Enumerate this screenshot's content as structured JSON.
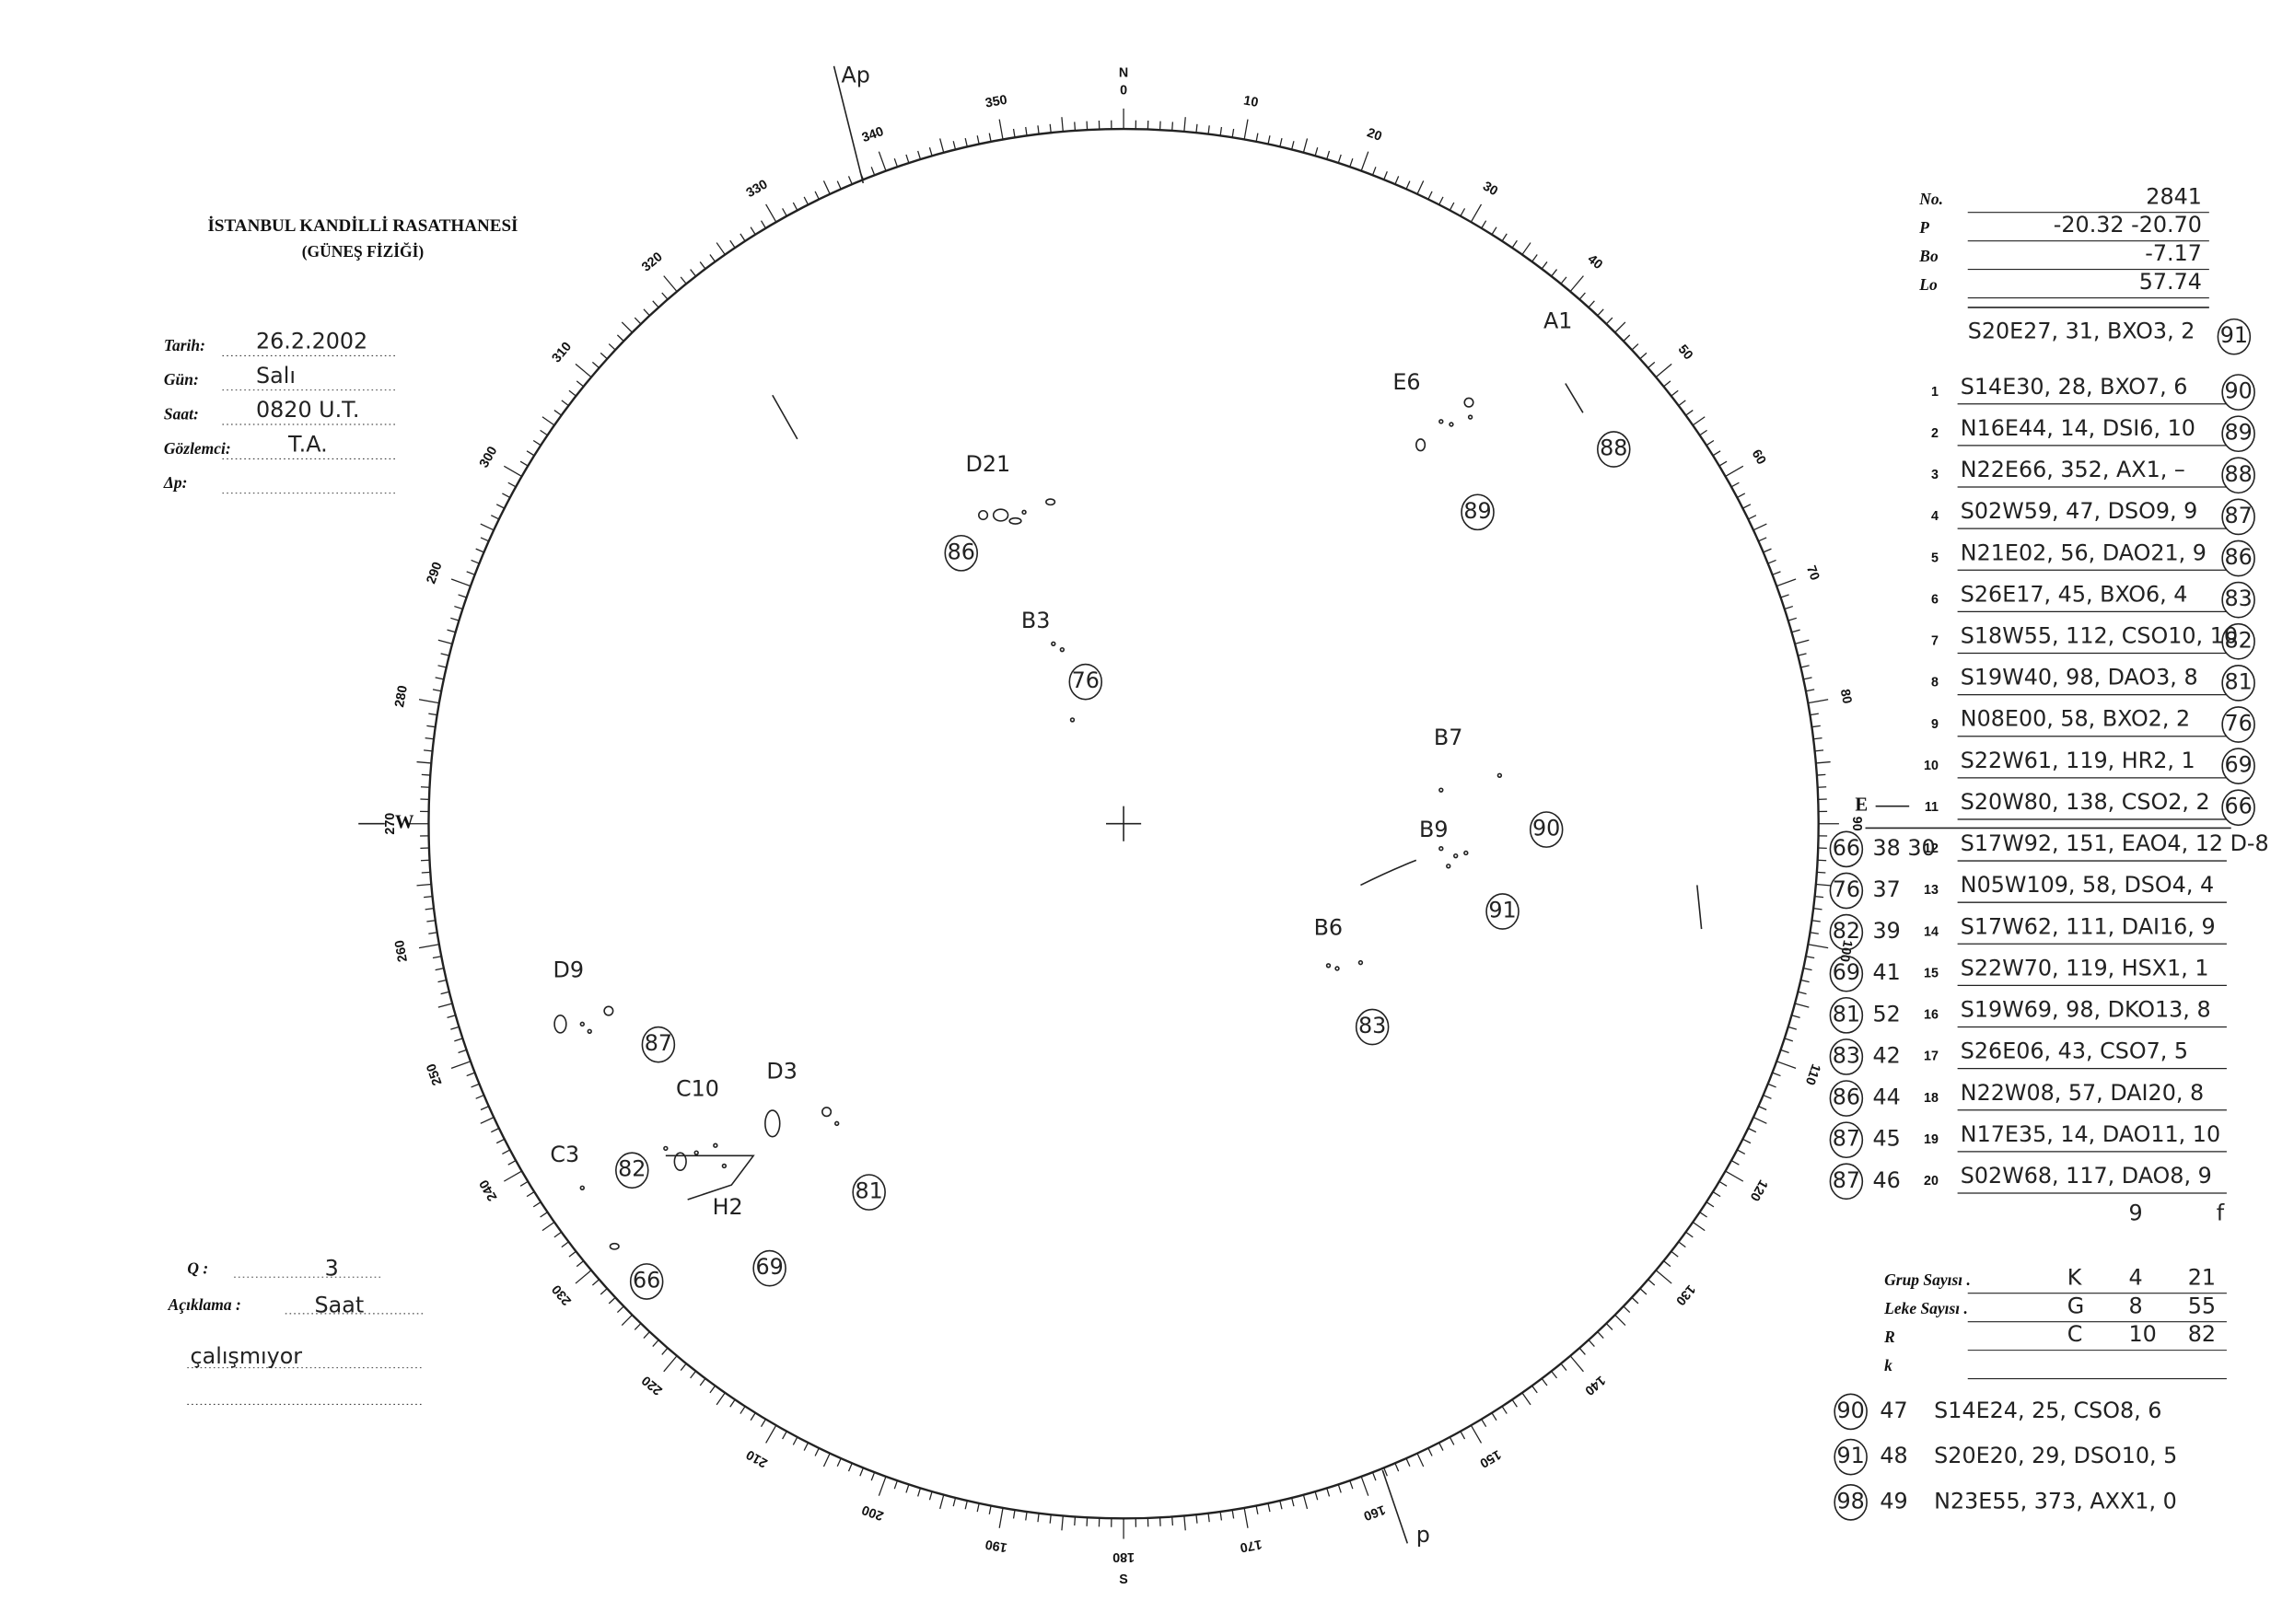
{
  "header": {
    "institution": "İSTANBUL KANDİLLİ RASATHANESİ",
    "department": "(GÜNEŞ FİZİĞİ)"
  },
  "form": [
    {
      "label": "Tarih:",
      "value": "26.2.2002"
    },
    {
      "label": "Gün:",
      "value": "Salı"
    },
    {
      "label": "Saat:",
      "value": "0820 U.T."
    },
    {
      "label": "Gözlemci:",
      "value": "T.A."
    },
    {
      "label": "Δp:",
      "value": ""
    }
  ],
  "remarks": {
    "q_label": "Q :",
    "q_value": "3",
    "note_label": "Açıklama :",
    "note_1": "Saat",
    "note_2": "çalışmıyor"
  },
  "dial": {
    "labels": [
      0,
      10,
      20,
      30,
      40,
      50,
      60,
      70,
      80,
      90,
      100,
      110,
      120,
      130,
      140,
      150,
      160,
      170,
      180,
      190,
      200,
      210,
      220,
      230,
      240,
      250,
      260,
      270,
      280,
      290,
      300,
      310,
      320,
      330,
      340,
      350
    ],
    "north": "N",
    "south": "S",
    "west": "W",
    "east": "E",
    "axis_top": "Ap",
    "axis_bottom": "p"
  },
  "params": [
    {
      "label": "No.",
      "value": "2841"
    },
    {
      "label": "P",
      "value": "-20.32  -20.70"
    },
    {
      "label": "Bo",
      "value": "-7.17"
    },
    {
      "label": "Lo",
      "value": "57.74"
    }
  ],
  "group_header": {
    "text": "S20E27, 31, BXO3, 2",
    "circle": "91"
  },
  "groups": [
    {
      "no": "1",
      "text": "S14E30, 28, BXO7, 6",
      "circle": "90"
    },
    {
      "no": "2",
      "text": "N16E44, 14, DSI6, 10",
      "circle": "89"
    },
    {
      "no": "3",
      "text": "N22E66, 352, AX1, –",
      "circle": "88"
    },
    {
      "no": "4",
      "text": "S02W59, 47, DSO9, 9",
      "circle": "87"
    },
    {
      "no": "5",
      "text": "N21E02, 56, DAO21, 9",
      "circle": "86"
    },
    {
      "no": "6",
      "text": "S26E17, 45, BXO6, 4",
      "circle": "83"
    },
    {
      "no": "7",
      "text": "S18W55, 112, CSO10, 10",
      "circle": "82"
    },
    {
      "no": "8",
      "text": "S19W40, 98, DAO3, 8",
      "circle": "81"
    },
    {
      "no": "9",
      "text": "N08E00, 58, BXO2, 2",
      "circle": "76"
    },
    {
      "no": "10",
      "text": "S22W61, 119, HR2, 1",
      "circle": "69"
    },
    {
      "no": "11",
      "text": "S20W80, 138, CSO2, 2",
      "circle": "66"
    },
    {
      "no": "12",
      "text": "S17W92, 151, EAO4, 12 D-8",
      "circle": "66",
      "prefix": "38 30"
    },
    {
      "no": "13",
      "text": "N05W109, 58, DSO4, 4",
      "circle": "76",
      "prefix": "37"
    },
    {
      "no": "14",
      "text": "S17W62, 111, DAI16, 9",
      "circle": "82",
      "prefix": "39"
    },
    {
      "no": "15",
      "text": "S22W70, 119, HSX1, 1",
      "circle": "69",
      "prefix": "41"
    },
    {
      "no": "16",
      "text": "S19W69, 98, DKO13, 8",
      "circle": "81",
      "prefix": "52"
    },
    {
      "no": "17",
      "text": "S26E06, 43, CSO7, 5",
      "circle": "83",
      "prefix": "42"
    },
    {
      "no": "18",
      "text": "N22W08, 57, DAI20, 8",
      "circle": "86",
      "prefix": "44"
    },
    {
      "no": "19",
      "text": "N17E35, 14, DAO11, 10",
      "circle": "87",
      "prefix": "45"
    },
    {
      "no": "20",
      "text": "S02W68, 117, DAO8, 9",
      "circle": "87",
      "prefix": "46"
    }
  ],
  "totals_marks": [
    "9",
    "f"
  ],
  "summary": [
    {
      "label": "Grup Sayısı .",
      "letter": "K",
      "a": "4",
      "b": "21"
    },
    {
      "label": "Leke Sayısı .",
      "letter": "G",
      "a": "8",
      "b": "55"
    },
    {
      "label": "R",
      "letter": "C",
      "a": "10",
      "b": "82"
    },
    {
      "label": "k",
      "letter": "",
      "a": "",
      "b": ""
    }
  ],
  "extra": [
    {
      "circle": "90",
      "prefix": "47",
      "text": "S14E24, 25, CSO8, 6"
    },
    {
      "circle": "91",
      "prefix": "48",
      "text": "S20E20, 29, DSO10, 5"
    },
    {
      "circle": "98",
      "prefix": "49",
      "text": "N23E55, 373, AXX1, 0"
    }
  ],
  "disk_labels": [
    {
      "text": "A1"
    },
    {
      "text": "E6"
    },
    {
      "text": "88",
      "circled": true
    },
    {
      "text": "89",
      "circled": true
    },
    {
      "text": "D21"
    },
    {
      "text": "86",
      "circled": true
    },
    {
      "text": "B3"
    },
    {
      "text": "76",
      "circled": true
    },
    {
      "text": "B7"
    },
    {
      "text": "B9"
    },
    {
      "text": "90",
      "circled": true
    },
    {
      "text": "91",
      "circled": true
    },
    {
      "text": "B6"
    },
    {
      "text": "83",
      "circled": true
    },
    {
      "text": "D9"
    },
    {
      "text": "87",
      "circled": true
    },
    {
      "text": "C10"
    },
    {
      "text": "D3"
    },
    {
      "text": "C3"
    },
    {
      "text": "82",
      "circled": true
    },
    {
      "text": "81",
      "circled": true
    },
    {
      "text": "H2"
    },
    {
      "text": "69",
      "circled": true
    },
    {
      "text": "66",
      "circled": true
    }
  ]
}
